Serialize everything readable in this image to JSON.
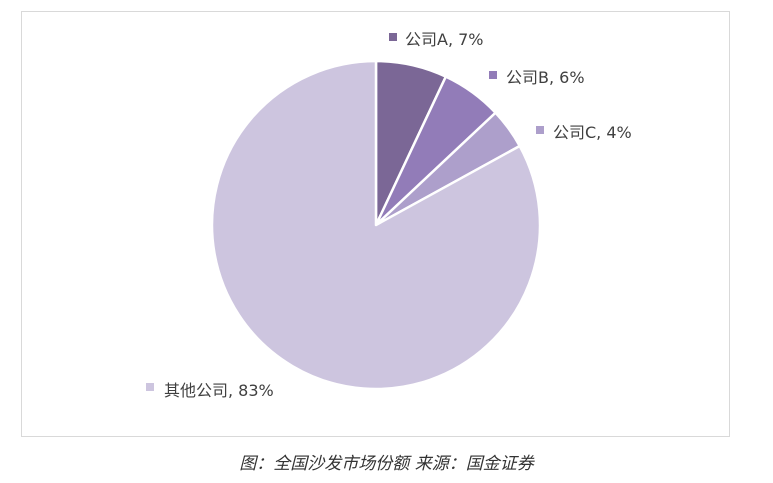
{
  "chart_data": {
    "type": "pie",
    "slices": [
      {
        "label": "公司A, 7%",
        "name": "公司A",
        "value": 7,
        "color": "#7b6796"
      },
      {
        "label": "公司B, 6%",
        "name": "公司B",
        "value": 6,
        "color": "#927cb8"
      },
      {
        "label": "公司C, 4%",
        "name": "公司C",
        "value": 4,
        "color": "#ad9fcb"
      },
      {
        "label": "其他公司, 83%",
        "name": "其他公司",
        "value": 83,
        "color": "#cdc5df"
      }
    ],
    "start": "12 o'clock",
    "direction": "clockwise",
    "legend": "none"
  },
  "caption": "图：全国沙发市场份额 来源：国金证券"
}
